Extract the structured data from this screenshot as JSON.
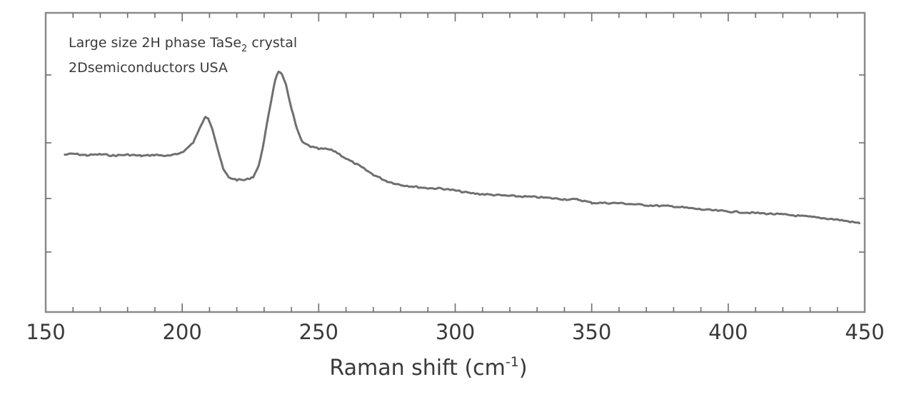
{
  "chart_data": {
    "type": "line",
    "xlabel": "Raman shift (cm-1)",
    "xlabel_parts": {
      "main": "Raman shift (cm",
      "sup": "-1",
      "close": ")"
    },
    "ylabel": "",
    "xlim": [
      150,
      450
    ],
    "ylim": [
      0,
      1
    ],
    "grid": false,
    "x_ticks": [
      150,
      200,
      250,
      300,
      350,
      400,
      450
    ],
    "x_ticks_labels": [
      "150",
      "200",
      "250",
      "300",
      "350",
      "400",
      "450"
    ],
    "annotation": {
      "line1": "Large size 2H phase TaSe2 crystal",
      "line1_parts": {
        "pre": "Large size 2H phase TaSe",
        "sub": "2",
        "post": " crystal"
      },
      "line2": "2Dsemiconductors USA"
    },
    "series": [
      {
        "color": "#6f6f6f",
        "points": [
          [
            157,
            0.526
          ],
          [
            160,
            0.529
          ],
          [
            165,
            0.524
          ],
          [
            170,
            0.527
          ],
          [
            175,
            0.523
          ],
          [
            180,
            0.526
          ],
          [
            185,
            0.522
          ],
          [
            190,
            0.525
          ],
          [
            195,
            0.522
          ],
          [
            198,
            0.527
          ],
          [
            201,
            0.54
          ],
          [
            204,
            0.567
          ],
          [
            206,
            0.605
          ],
          [
            207.5,
            0.635
          ],
          [
            208.5,
            0.651
          ],
          [
            209.5,
            0.649
          ],
          [
            211,
            0.615
          ],
          [
            213,
            0.545
          ],
          [
            215,
            0.478
          ],
          [
            217,
            0.45
          ],
          [
            220,
            0.442
          ],
          [
            223,
            0.441
          ],
          [
            226,
            0.452
          ],
          [
            228,
            0.487
          ],
          [
            230,
            0.573
          ],
          [
            232,
            0.678
          ],
          [
            234,
            0.775
          ],
          [
            235.3,
            0.805
          ],
          [
            236.5,
            0.793
          ],
          [
            238,
            0.758
          ],
          [
            240,
            0.682
          ],
          [
            242,
            0.612
          ],
          [
            244,
            0.567
          ],
          [
            247,
            0.553
          ],
          [
            250,
            0.545
          ],
          [
            253,
            0.545
          ],
          [
            256,
            0.537
          ],
          [
            260,
            0.513
          ],
          [
            265,
            0.488
          ],
          [
            270,
            0.459
          ],
          [
            275,
            0.437
          ],
          [
            280,
            0.425
          ],
          [
            285,
            0.419
          ],
          [
            290,
            0.414
          ],
          [
            295,
            0.413
          ],
          [
            300,
            0.406
          ],
          [
            305,
            0.398
          ],
          [
            310,
            0.394
          ],
          [
            320,
            0.388
          ],
          [
            330,
            0.384
          ],
          [
            340,
            0.377
          ],
          [
            345,
            0.376
          ],
          [
            350,
            0.365
          ],
          [
            360,
            0.364
          ],
          [
            370,
            0.357
          ],
          [
            380,
            0.353
          ],
          [
            390,
            0.343
          ],
          [
            400,
            0.336
          ],
          [
            410,
            0.331
          ],
          [
            420,
            0.326
          ],
          [
            430,
            0.318
          ],
          [
            440,
            0.309
          ],
          [
            448,
            0.297
          ]
        ]
      }
    ]
  }
}
